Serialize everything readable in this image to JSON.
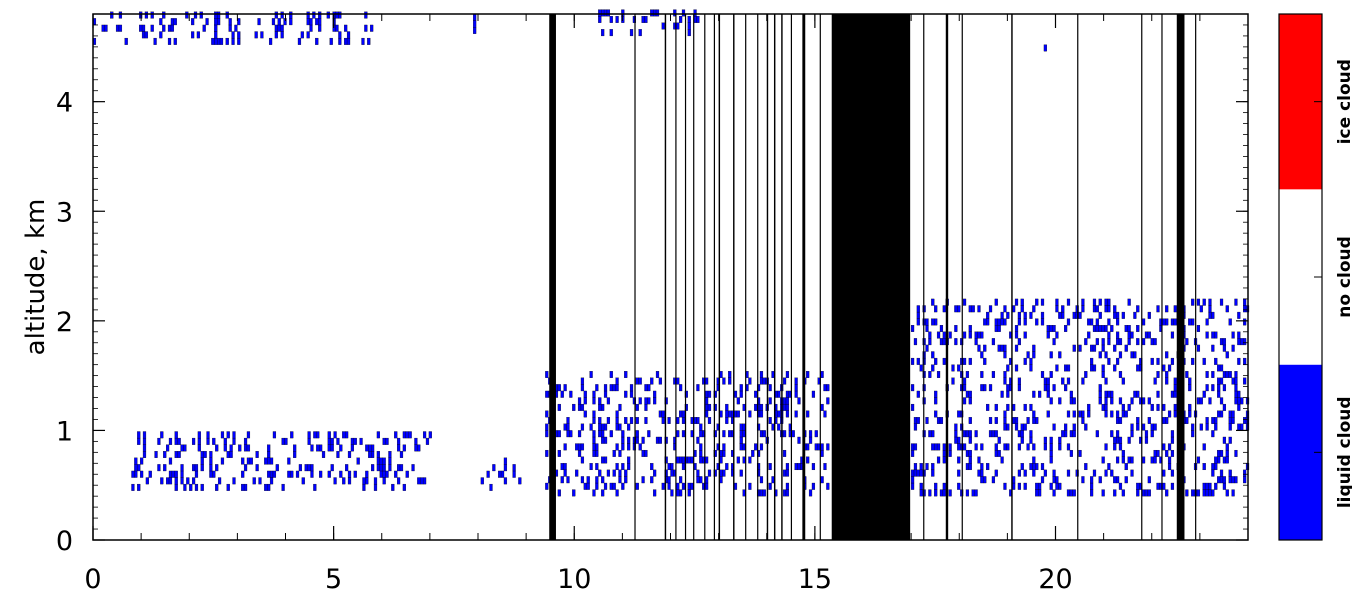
{
  "chart_data": {
    "type": "heatmap",
    "xlabel": "",
    "ylabel": "altitude, km",
    "xlim": [
      0,
      24
    ],
    "ylim": [
      0,
      4.8
    ],
    "x_ticks": [
      "0",
      "5",
      "10",
      "15",
      "20"
    ],
    "y_ticks": [
      "0",
      "1",
      "2",
      "3",
      "4"
    ],
    "grid": false,
    "colorbar": {
      "classes": [
        {
          "name": "liquid cloud",
          "color": "#0000ff"
        },
        {
          "name": "no cloud",
          "color": "#ffffff"
        },
        {
          "name": "ice cloud",
          "color": "#ff0000"
        }
      ]
    },
    "missing_data_x_ranges": [
      [
        9.48,
        9.62
      ],
      [
        15.35,
        16.98
      ],
      [
        22.52,
        22.68
      ],
      [
        21.78,
        21.8
      ],
      [
        19.08,
        19.11
      ],
      [
        17.72,
        17.77
      ],
      [
        14.74,
        14.8
      ],
      [
        11.88,
        11.91
      ],
      [
        11.25,
        11.27
      ],
      [
        12.3,
        12.32
      ],
      [
        12.47,
        12.49
      ],
      [
        12.7,
        12.72
      ],
      [
        13.0,
        13.03
      ],
      [
        13.3,
        13.33
      ],
      [
        13.8,
        13.82
      ],
      [
        14.0,
        14.03
      ],
      [
        14.15,
        14.18
      ],
      [
        14.3,
        14.33
      ],
      [
        15.1,
        15.12
      ],
      [
        17.25,
        17.27
      ],
      [
        18.05,
        18.07
      ],
      [
        20.45,
        20.47
      ],
      [
        22.2,
        22.22
      ],
      [
        22.9,
        22.92
      ],
      [
        12.1,
        12.12
      ],
      [
        12.9,
        12.92
      ],
      [
        13.55,
        13.57
      ],
      [
        14.5,
        14.52
      ]
    ],
    "liquid_cloud_regions": [
      {
        "x": [
          0.0,
          6.0
        ],
        "y": [
          4.52,
          4.8
        ]
      },
      {
        "x": [
          7.9,
          8.0
        ],
        "y": [
          4.62,
          4.8
        ]
      },
      {
        "x": [
          10.5,
          12.6
        ],
        "y": [
          4.6,
          4.8
        ]
      },
      {
        "x": [
          19.7,
          19.85
        ],
        "y": [
          4.4,
          4.55
        ]
      },
      {
        "x": [
          0.8,
          7.0
        ],
        "y": [
          0.45,
          0.95
        ]
      },
      {
        "x": [
          8.0,
          9.0
        ],
        "y": [
          0.45,
          0.7
        ]
      },
      {
        "x": [
          9.4,
          9.5
        ],
        "y": [
          0.4,
          1.6
        ]
      },
      {
        "x": [
          9.6,
          15.3
        ],
        "y": [
          0.4,
          1.5
        ]
      },
      {
        "x": [
          17.0,
          24.0
        ],
        "y": [
          0.4,
          2.2
        ]
      }
    ]
  }
}
